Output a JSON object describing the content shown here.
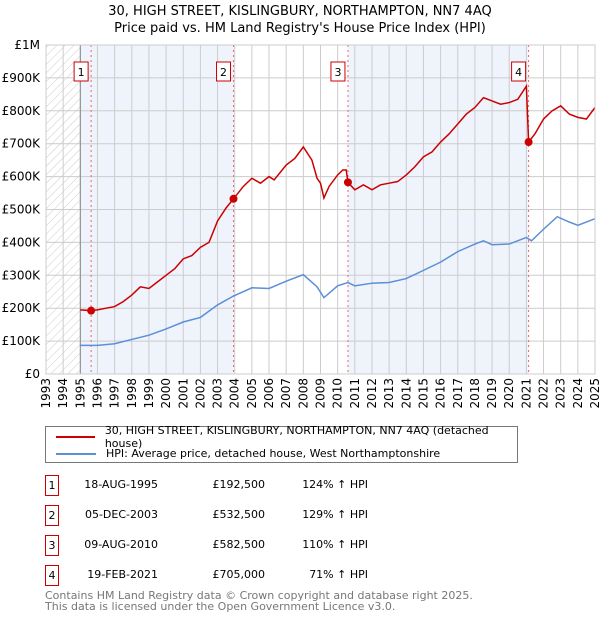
{
  "title": "30, HIGH STREET, KISLINGBURY, NORTHAMPTON, NN7 4AQ",
  "subtitle": "Price paid vs. HM Land Registry's House Price Index (HPI)",
  "chart_data": {
    "type": "line",
    "xlim": [
      1993,
      2025
    ],
    "ylim": [
      0,
      1000000
    ],
    "x_ticks": [
      "1993",
      "1994",
      "1995",
      "1996",
      "1997",
      "1998",
      "1999",
      "2000",
      "2001",
      "2002",
      "2003",
      "2004",
      "2005",
      "2006",
      "2007",
      "2008",
      "2009",
      "2010",
      "2011",
      "2012",
      "2013",
      "2014",
      "2015",
      "2016",
      "2017",
      "2018",
      "2019",
      "2020",
      "2021",
      "2022",
      "2023",
      "2024",
      "2025"
    ],
    "y_ticks": [
      {
        "v": 0,
        "label": "£0"
      },
      {
        "v": 100000,
        "label": "£100K"
      },
      {
        "v": 200000,
        "label": "£200K"
      },
      {
        "v": 300000,
        "label": "£300K"
      },
      {
        "v": 400000,
        "label": "£400K"
      },
      {
        "v": 500000,
        "label": "£500K"
      },
      {
        "v": 600000,
        "label": "£600K"
      },
      {
        "v": 700000,
        "label": "£700K"
      },
      {
        "v": 800000,
        "label": "£800K"
      },
      {
        "v": 900000,
        "label": "£900K"
      },
      {
        "v": 1000000,
        "label": "£1M"
      }
    ],
    "series": [
      {
        "name": "30, HIGH STREET, KISLINGBURY, NORTHAMPTON, NN7 4AQ (detached house)",
        "color": "#cc0000",
        "points": [
          [
            1995,
            195
          ],
          [
            1995.63,
            192.5
          ],
          [
            1996,
            195
          ],
          [
            1996.5,
            200
          ],
          [
            1997,
            205
          ],
          [
            1997.5,
            220
          ],
          [
            1998,
            240
          ],
          [
            1998.5,
            265
          ],
          [
            1999,
            260
          ],
          [
            1999.5,
            280
          ],
          [
            2000,
            300
          ],
          [
            2000.5,
            320
          ],
          [
            2001,
            350
          ],
          [
            2001.5,
            360
          ],
          [
            2002,
            385
          ],
          [
            2002.5,
            400
          ],
          [
            2003,
            465
          ],
          [
            2003.5,
            505
          ],
          [
            2003.93,
            532.5
          ],
          [
            2004.5,
            570
          ],
          [
            2005,
            595
          ],
          [
            2005.5,
            580
          ],
          [
            2006,
            600
          ],
          [
            2006.3,
            590
          ],
          [
            2007,
            635
          ],
          [
            2007.5,
            655
          ],
          [
            2008,
            690
          ],
          [
            2008.5,
            650
          ],
          [
            2008.8,
            595
          ],
          [
            2009,
            580
          ],
          [
            2009.2,
            535
          ],
          [
            2009.5,
            570
          ],
          [
            2010,
            605
          ],
          [
            2010.3,
            620
          ],
          [
            2010.5,
            620
          ],
          [
            2010.6,
            582.5
          ],
          [
            2011,
            560
          ],
          [
            2011.5,
            575
          ],
          [
            2012,
            560
          ],
          [
            2012.5,
            575
          ],
          [
            2013,
            580
          ],
          [
            2013.5,
            585
          ],
          [
            2014,
            605
          ],
          [
            2014.5,
            630
          ],
          [
            2015,
            660
          ],
          [
            2015.5,
            675
          ],
          [
            2016,
            705
          ],
          [
            2016.5,
            730
          ],
          [
            2017,
            760
          ],
          [
            2017.5,
            790
          ],
          [
            2018,
            810
          ],
          [
            2018.5,
            840
          ],
          [
            2019,
            830
          ],
          [
            2019.5,
            820
          ],
          [
            2020,
            825
          ],
          [
            2020.5,
            835
          ],
          [
            2021.0,
            875
          ],
          [
            2021.13,
            705
          ],
          [
            2021.5,
            730
          ],
          [
            2022,
            775
          ],
          [
            2022.5,
            800
          ],
          [
            2023,
            815
          ],
          [
            2023.5,
            790
          ],
          [
            2024,
            780
          ],
          [
            2024.5,
            775
          ],
          [
            2025,
            810
          ]
        ]
      },
      {
        "name": "HPI: Average price, detached house, West Northamptonshire",
        "color": "#5b8fd6",
        "points": [
          [
            1995,
            87
          ],
          [
            1996,
            87
          ],
          [
            1997,
            92
          ],
          [
            1998,
            105
          ],
          [
            1999,
            118
          ],
          [
            2000,
            137
          ],
          [
            2001,
            158
          ],
          [
            2002,
            172
          ],
          [
            2003,
            210
          ],
          [
            2003.93,
            237
          ],
          [
            2005,
            262
          ],
          [
            2006,
            260
          ],
          [
            2007,
            282
          ],
          [
            2008,
            302
          ],
          [
            2008.8,
            265
          ],
          [
            2009.2,
            232
          ],
          [
            2010,
            268
          ],
          [
            2010.6,
            278
          ],
          [
            2011,
            268
          ],
          [
            2012,
            276
          ],
          [
            2013,
            278
          ],
          [
            2014,
            290
          ],
          [
            2015,
            315
          ],
          [
            2016,
            340
          ],
          [
            2017,
            372
          ],
          [
            2018,
            395
          ],
          [
            2018.5,
            405
          ],
          [
            2019,
            393
          ],
          [
            2020,
            395
          ],
          [
            2021,
            415
          ],
          [
            2021.3,
            405
          ],
          [
            2022,
            440
          ],
          [
            2022.8,
            478
          ],
          [
            2023.5,
            462
          ],
          [
            2024,
            452
          ],
          [
            2025,
            472
          ]
        ]
      }
    ],
    "y_units": "£ thousands in points",
    "sales": [
      {
        "n": "1",
        "x": 1995.63,
        "y": 192.5
      },
      {
        "n": "2",
        "x": 2003.93,
        "y": 532.5
      },
      {
        "n": "3",
        "x": 2010.6,
        "y": 582.5
      },
      {
        "n": "4",
        "x": 2021.13,
        "y": 705
      }
    ]
  },
  "legend": {
    "red": "30, HIGH STREET, KISLINGBURY, NORTHAMPTON, NN7 4AQ (detached house)",
    "blue": "HPI: Average price, detached house, West Northamptonshire"
  },
  "table": [
    {
      "n": "1",
      "date": "18-AUG-1995",
      "price": "£192,500",
      "hpi": "124% ↑ HPI"
    },
    {
      "n": "2",
      "date": "05-DEC-2003",
      "price": "£532,500",
      "hpi": "129% ↑ HPI"
    },
    {
      "n": "3",
      "date": "09-AUG-2010",
      "price": "£582,500",
      "hpi": "110% ↑ HPI"
    },
    {
      "n": "4",
      "date": "19-FEB-2021",
      "price": "£705,000",
      "hpi": "71% ↑ HPI"
    }
  ],
  "footer": [
    "Contains HM Land Registry data © Crown copyright and database right 2025.",
    "This data is licensed under the Open Government Licence v3.0."
  ]
}
